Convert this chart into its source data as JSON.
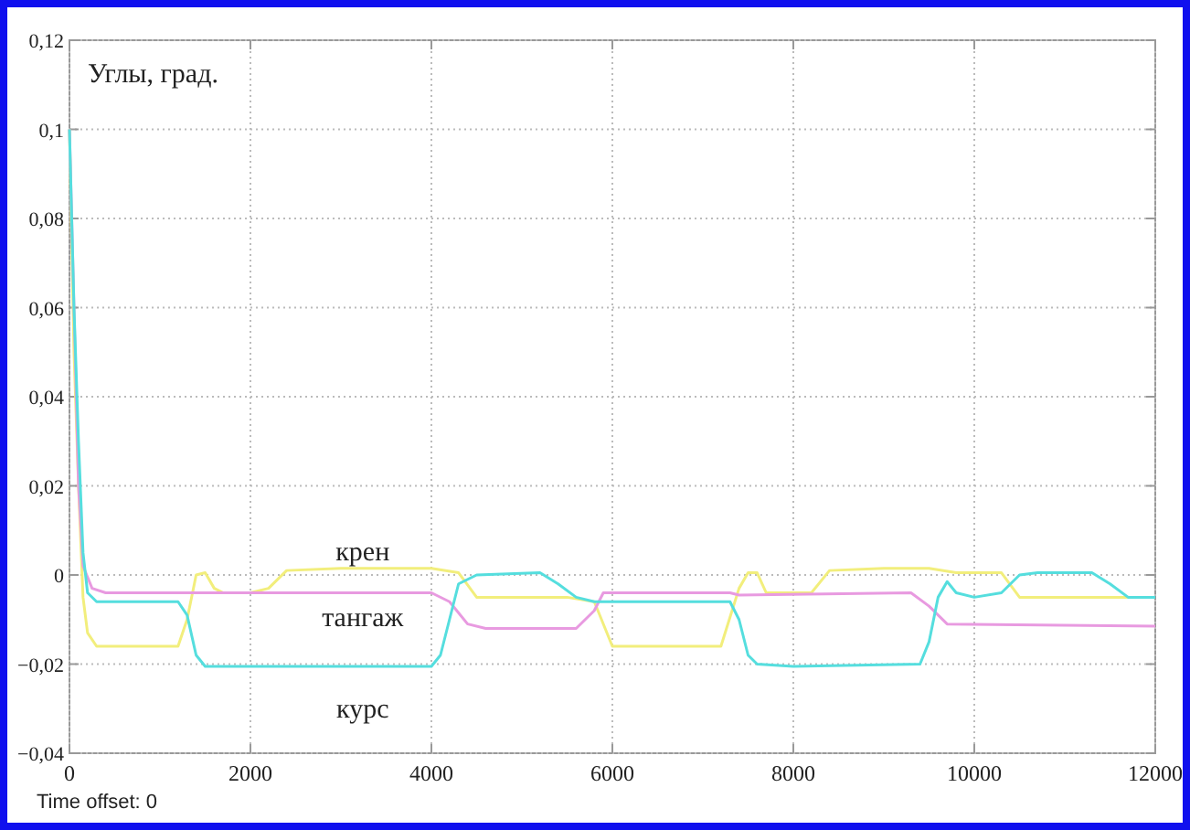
{
  "chart_data": {
    "type": "line",
    "title": "Углы, град.",
    "annotations": [
      "Time offset: 0"
    ],
    "xlim": [
      0,
      12000
    ],
    "xticks": [
      0,
      2000,
      4000,
      6000,
      8000,
      10000,
      12000
    ],
    "ylim": [
      -0.04,
      0.12
    ],
    "yticks": [
      {
        "value": -0.04,
        "label": "−0,04"
      },
      {
        "value": -0.02,
        "label": "−0,02"
      },
      0,
      {
        "value": 0.02,
        "label": "0,02"
      },
      {
        "value": 0.04,
        "label": "0,04"
      },
      {
        "value": 0.06,
        "label": "0,06"
      },
      {
        "value": 0.08,
        "label": "0,08"
      },
      {
        "value": 0.1,
        "label": "0,1"
      },
      {
        "value": 0.12,
        "label": "0,12"
      }
    ],
    "grid": true,
    "series": [
      {
        "name": "крен",
        "color": "#f2ee7c",
        "x": [
          0,
          50,
          100,
          150,
          200,
          300,
          1200,
          1300,
          1400,
          1500,
          1600,
          1700,
          2000,
          2200,
          2400,
          3000,
          4000,
          4300,
          4500,
          5500,
          5800,
          6000,
          7200,
          7400,
          7500,
          7600,
          7700,
          8200,
          8400,
          9000,
          9500,
          9800,
          10300,
          10500,
          12000
        ],
        "values": [
          0.1,
          0.05,
          0.02,
          -0.005,
          -0.013,
          -0.016,
          -0.016,
          -0.01,
          0,
          0.0005,
          -0.003,
          -0.004,
          -0.004,
          -0.003,
          0.001,
          0.0015,
          0.0015,
          0.0005,
          -0.005,
          -0.005,
          -0.006,
          -0.016,
          -0.016,
          -0.003,
          0.0005,
          0.0005,
          -0.004,
          -0.004,
          0.001,
          0.0015,
          0.0015,
          0.0005,
          0.0005,
          -0.005,
          -0.005
        ]
      },
      {
        "name": "тангаж",
        "color": "#e89ae0",
        "x": [
          0,
          50,
          100,
          150,
          250,
          400,
          4000,
          4200,
          4400,
          4600,
          5600,
          5800,
          5900,
          7300,
          7400,
          9300,
          9500,
          9700,
          12000
        ],
        "values": [
          0.1,
          0.06,
          0.02,
          0.002,
          -0.003,
          -0.004,
          -0.004,
          -0.006,
          -0.011,
          -0.012,
          -0.012,
          -0.008,
          -0.004,
          -0.004,
          -0.0045,
          -0.004,
          -0.007,
          -0.011,
          -0.0115
        ]
      },
      {
        "name": "курс",
        "color": "#55dede",
        "x": [
          0,
          50,
          100,
          150,
          200,
          300,
          1200,
          1300,
          1400,
          1500,
          4000,
          4100,
          4200,
          4300,
          4500,
          5200,
          5400,
          5600,
          5800,
          6000,
          7300,
          7400,
          7500,
          7600,
          8000,
          9400,
          9500,
          9600,
          9700,
          9800,
          10000,
          10300,
          10500,
          10700,
          11300,
          11500,
          11700,
          12000
        ],
        "values": [
          0.1,
          0.06,
          0.03,
          0.005,
          -0.004,
          -0.006,
          -0.006,
          -0.009,
          -0.018,
          -0.0205,
          -0.0205,
          -0.018,
          -0.01,
          -0.002,
          0,
          0.0005,
          -0.002,
          -0.005,
          -0.006,
          -0.006,
          -0.006,
          -0.01,
          -0.018,
          -0.02,
          -0.0205,
          -0.02,
          -0.015,
          -0.005,
          -0.0015,
          -0.004,
          -0.005,
          -0.004,
          0,
          0.0005,
          0.0005,
          -0.002,
          -0.005,
          -0.005
        ]
      }
    ]
  }
}
